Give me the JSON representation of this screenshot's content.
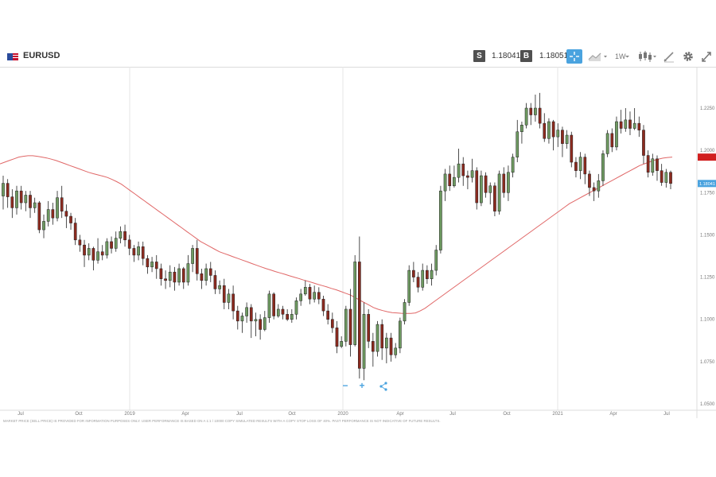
{
  "header": {
    "symbol": "EURUSD",
    "sell_label": "S",
    "sell_price": "1.18041",
    "buy_label": "B",
    "buy_price": "1.18051",
    "timeframe": "1W",
    "icons": [
      "us-eu-flag-icon",
      "crosshair-icon",
      "chart-type-icon",
      "candles-icon",
      "draw-icon",
      "gear-icon",
      "fullscreen-icon"
    ]
  },
  "colors": {
    "up": "#6e9a61",
    "down": "#8c2a1f",
    "ma": "#e06767",
    "crosshair_active": "#4aa3df",
    "price_tag": "#4aa3df",
    "ma_tag": "#d11f1f"
  },
  "chart_data": {
    "type": "candlestick",
    "x_ticks": [
      "Jul",
      "Oct",
      "2019",
      "Apr",
      "Jul",
      "Oct",
      "2020",
      "Apr",
      "Jul",
      "Oct",
      "2021",
      "Apr",
      "Jul"
    ],
    "y_ticks": [
      "1.2250",
      "1.2000",
      "1.1750",
      "1.1500",
      "1.1250",
      "1.1000",
      "1.0750",
      "1.0500"
    ],
    "ylim": [
      1.05,
      1.249
    ],
    "current_price": 1.1804,
    "current_price_label": "1.18041",
    "ma_current": 1.196,
    "grid": "vertical lines at year boundaries",
    "candles": [
      [
        1.173,
        1.1805,
        1.185,
        1.165
      ],
      [
        1.1805,
        1.1725,
        1.183,
        1.166
      ],
      [
        1.1725,
        1.166,
        1.177,
        1.16
      ],
      [
        1.166,
        1.176,
        1.179,
        1.162
      ],
      [
        1.176,
        1.169,
        1.179,
        1.165
      ],
      [
        1.169,
        1.1735,
        1.176,
        1.164
      ],
      [
        1.1735,
        1.166,
        1.176,
        1.16
      ],
      [
        1.166,
        1.169,
        1.172,
        1.163
      ],
      [
        1.169,
        1.153,
        1.17,
        1.151
      ],
      [
        1.153,
        1.158,
        1.162,
        1.148
      ],
      [
        1.158,
        1.165,
        1.17,
        1.155
      ],
      [
        1.165,
        1.16,
        1.169,
        1.156
      ],
      [
        1.16,
        1.172,
        1.176,
        1.158
      ],
      [
        1.172,
        1.164,
        1.179,
        1.16
      ],
      [
        1.164,
        1.161,
        1.168,
        1.154
      ],
      [
        1.161,
        1.157,
        1.163,
        1.153
      ],
      [
        1.157,
        1.147,
        1.16,
        1.144
      ],
      [
        1.147,
        1.144,
        1.15,
        1.14
      ],
      [
        1.144,
        1.138,
        1.147,
        1.131
      ],
      [
        1.138,
        1.142,
        1.145,
        1.135
      ],
      [
        1.142,
        1.135,
        1.143,
        1.129
      ],
      [
        1.135,
        1.14,
        1.148,
        1.133
      ],
      [
        1.14,
        1.138,
        1.144,
        1.135
      ],
      [
        1.138,
        1.146,
        1.148,
        1.136
      ],
      [
        1.146,
        1.142,
        1.149,
        1.139
      ],
      [
        1.142,
        1.148,
        1.152,
        1.14
      ],
      [
        1.148,
        1.152,
        1.155,
        1.145
      ],
      [
        1.152,
        1.147,
        1.156,
        1.143
      ],
      [
        1.147,
        1.142,
        1.15,
        1.138
      ],
      [
        1.142,
        1.138,
        1.144,
        1.134
      ],
      [
        1.138,
        1.143,
        1.146,
        1.135
      ],
      [
        1.143,
        1.136,
        1.146,
        1.132
      ],
      [
        1.136,
        1.131,
        1.138,
        1.127
      ],
      [
        1.131,
        1.134,
        1.137,
        1.128
      ],
      [
        1.134,
        1.13,
        1.138,
        1.124
      ],
      [
        1.13,
        1.124,
        1.133,
        1.12
      ],
      [
        1.124,
        1.123,
        1.129,
        1.118
      ],
      [
        1.123,
        1.128,
        1.132,
        1.119
      ],
      [
        1.128,
        1.122,
        1.131,
        1.117
      ],
      [
        1.122,
        1.13,
        1.133,
        1.12
      ],
      [
        1.13,
        1.122,
        1.131,
        1.118
      ],
      [
        1.122,
        1.133,
        1.138,
        1.12
      ],
      [
        1.133,
        1.142,
        1.144,
        1.128
      ],
      [
        1.142,
        1.127,
        1.147,
        1.123
      ],
      [
        1.127,
        1.123,
        1.13,
        1.118
      ],
      [
        1.123,
        1.13,
        1.133,
        1.12
      ],
      [
        1.13,
        1.126,
        1.134,
        1.122
      ],
      [
        1.126,
        1.118,
        1.129,
        1.115
      ],
      [
        1.118,
        1.12,
        1.123,
        1.115
      ],
      [
        1.12,
        1.11,
        1.124,
        1.106
      ],
      [
        1.11,
        1.115,
        1.118,
        1.106
      ],
      [
        1.115,
        1.105,
        1.12,
        1.1
      ],
      [
        1.105,
        1.099,
        1.108,
        1.094
      ],
      [
        1.099,
        1.102,
        1.104,
        1.092
      ],
      [
        1.102,
        1.107,
        1.11,
        1.098
      ],
      [
        1.107,
        1.099,
        1.109,
        1.089
      ],
      [
        1.099,
        1.1,
        1.104,
        1.09
      ],
      [
        1.1,
        1.094,
        1.103,
        1.088
      ],
      [
        1.094,
        1.101,
        1.105,
        1.093
      ],
      [
        1.101,
        1.115,
        1.117,
        1.098
      ],
      [
        1.115,
        1.102,
        1.116,
        1.1
      ],
      [
        1.102,
        1.106,
        1.109,
        1.101
      ],
      [
        1.106,
        1.103,
        1.108,
        1.1
      ],
      [
        1.103,
        1.1,
        1.106,
        1.099
      ],
      [
        1.1,
        1.103,
        1.106,
        1.098
      ],
      [
        1.103,
        1.111,
        1.113,
        1.1
      ],
      [
        1.111,
        1.115,
        1.118,
        1.108
      ],
      [
        1.115,
        1.119,
        1.123,
        1.114
      ],
      [
        1.119,
        1.112,
        1.121,
        1.109
      ],
      [
        1.112,
        1.116,
        1.12,
        1.11
      ],
      [
        1.116,
        1.112,
        1.119,
        1.109
      ],
      [
        1.112,
        1.105,
        1.114,
        1.102
      ],
      [
        1.105,
        1.1,
        1.109,
        1.097
      ],
      [
        1.1,
        1.095,
        1.104,
        1.092
      ],
      [
        1.095,
        1.084,
        1.099,
        1.08
      ],
      [
        1.084,
        1.087,
        1.09,
        1.083
      ],
      [
        1.087,
        1.106,
        1.108,
        1.084
      ],
      [
        1.106,
        1.085,
        1.118,
        1.078
      ],
      [
        1.085,
        1.134,
        1.138,
        1.084
      ],
      [
        1.134,
        1.071,
        1.149,
        1.065
      ],
      [
        1.071,
        1.103,
        1.11,
        1.064
      ],
      [
        1.103,
        1.087,
        1.106,
        1.083
      ],
      [
        1.087,
        1.081,
        1.092,
        1.072
      ],
      [
        1.081,
        1.097,
        1.099,
        1.078
      ],
      [
        1.097,
        1.083,
        1.1,
        1.076
      ],
      [
        1.083,
        1.089,
        1.092,
        1.074
      ],
      [
        1.089,
        1.079,
        1.092,
        1.075
      ],
      [
        1.079,
        1.083,
        1.086,
        1.077
      ],
      [
        1.083,
        1.099,
        1.101,
        1.08
      ],
      [
        1.099,
        1.11,
        1.112,
        1.097
      ],
      [
        1.11,
        1.129,
        1.132,
        1.108
      ],
      [
        1.129,
        1.125,
        1.134,
        1.122
      ],
      [
        1.125,
        1.119,
        1.128,
        1.116
      ],
      [
        1.119,
        1.129,
        1.133,
        1.117
      ],
      [
        1.129,
        1.124,
        1.132,
        1.121
      ],
      [
        1.124,
        1.129,
        1.133,
        1.12
      ],
      [
        1.129,
        1.141,
        1.144,
        1.126
      ],
      [
        1.141,
        1.176,
        1.179,
        1.139
      ],
      [
        1.176,
        1.186,
        1.189,
        1.17
      ],
      [
        1.186,
        1.179,
        1.191,
        1.176
      ],
      [
        1.179,
        1.184,
        1.191,
        1.178
      ],
      [
        1.184,
        1.192,
        1.201,
        1.181
      ],
      [
        1.192,
        1.185,
        1.196,
        1.179
      ],
      [
        1.185,
        1.184,
        1.188,
        1.177
      ],
      [
        1.184,
        1.188,
        1.195,
        1.181
      ],
      [
        1.188,
        1.169,
        1.19,
        1.165
      ],
      [
        1.169,
        1.185,
        1.188,
        1.167
      ],
      [
        1.185,
        1.175,
        1.187,
        1.172
      ],
      [
        1.175,
        1.179,
        1.181,
        1.168
      ],
      [
        1.179,
        1.164,
        1.181,
        1.161
      ],
      [
        1.164,
        1.186,
        1.188,
        1.162
      ],
      [
        1.186,
        1.175,
        1.19,
        1.172
      ],
      [
        1.175,
        1.187,
        1.191,
        1.17
      ],
      [
        1.187,
        1.196,
        1.198,
        1.184
      ],
      [
        1.196,
        1.211,
        1.218,
        1.193
      ],
      [
        1.211,
        1.215,
        1.217,
        1.204
      ],
      [
        1.215,
        1.225,
        1.228,
        1.213
      ],
      [
        1.225,
        1.221,
        1.228,
        1.215
      ],
      [
        1.221,
        1.225,
        1.233,
        1.217
      ],
      [
        1.225,
        1.216,
        1.234,
        1.213
      ],
      [
        1.216,
        1.207,
        1.222,
        1.205
      ],
      [
        1.207,
        1.217,
        1.219,
        1.204
      ],
      [
        1.217,
        1.208,
        1.218,
        1.2
      ],
      [
        1.208,
        1.212,
        1.216,
        1.202
      ],
      [
        1.212,
        1.204,
        1.214,
        1.196
      ],
      [
        1.204,
        1.209,
        1.212,
        1.201
      ],
      [
        1.209,
        1.193,
        1.211,
        1.19
      ],
      [
        1.193,
        1.188,
        1.196,
        1.184
      ],
      [
        1.188,
        1.196,
        1.199,
        1.183
      ],
      [
        1.196,
        1.186,
        1.198,
        1.18
      ],
      [
        1.186,
        1.178,
        1.188,
        1.173
      ],
      [
        1.178,
        1.176,
        1.181,
        1.17
      ],
      [
        1.176,
        1.182,
        1.186,
        1.172
      ],
      [
        1.182,
        1.198,
        1.2,
        1.179
      ],
      [
        1.198,
        1.21,
        1.212,
        1.196
      ],
      [
        1.21,
        1.202,
        1.213,
        1.199
      ],
      [
        1.202,
        1.217,
        1.22,
        1.2
      ],
      [
        1.217,
        1.213,
        1.224,
        1.21
      ],
      [
        1.213,
        1.218,
        1.225,
        1.211
      ],
      [
        1.218,
        1.213,
        1.223,
        1.209
      ],
      [
        1.213,
        1.216,
        1.225,
        1.212
      ],
      [
        1.216,
        1.212,
        1.22,
        1.208
      ],
      [
        1.212,
        1.197,
        1.215,
        1.192
      ],
      [
        1.197,
        1.187,
        1.2,
        1.184
      ],
      [
        1.187,
        1.195,
        1.198,
        1.185
      ],
      [
        1.195,
        1.188,
        1.197,
        1.182
      ],
      [
        1.188,
        1.181,
        1.192,
        1.179
      ],
      [
        1.181,
        1.187,
        1.189,
        1.178
      ],
      [
        1.187,
        1.1804,
        1.188,
        1.177
      ]
    ],
    "moving_average": [
      1.192,
      1.193,
      1.194,
      1.195,
      1.196,
      1.1965,
      1.1968,
      1.1968,
      1.1965,
      1.196,
      1.1955,
      1.1948,
      1.194,
      1.193,
      1.192,
      1.191,
      1.19,
      1.189,
      1.188,
      1.187,
      1.1862,
      1.1855,
      1.1848,
      1.184,
      1.1828,
      1.1815,
      1.18,
      1.178,
      1.176,
      1.174,
      1.172,
      1.17,
      1.168,
      1.166,
      1.164,
      1.162,
      1.16,
      1.158,
      1.156,
      1.154,
      1.152,
      1.15,
      1.148,
      1.146,
      1.1445,
      1.143,
      1.1415,
      1.14,
      1.139,
      1.138,
      1.137,
      1.136,
      1.135,
      1.134,
      1.133,
      1.132,
      1.131,
      1.13,
      1.1292,
      1.1283,
      1.1275,
      1.1267,
      1.1258,
      1.125,
      1.1242,
      1.1233,
      1.1225,
      1.1217,
      1.1208,
      1.12,
      1.1192,
      1.1183,
      1.1175,
      1.1165,
      1.1155,
      1.1145,
      1.113,
      1.1115,
      1.11,
      1.1085,
      1.107,
      1.106,
      1.1052,
      1.1045,
      1.104,
      1.1038,
      1.1036,
      1.1035,
      1.1035,
      1.1038,
      1.105,
      1.1065,
      1.1085,
      1.1105,
      1.1125,
      1.1145,
      1.1165,
      1.1185,
      1.1205,
      1.1225,
      1.1245,
      1.1265,
      1.1285,
      1.1305,
      1.1325,
      1.1345,
      1.1365,
      1.1385,
      1.1405,
      1.1425,
      1.1445,
      1.1465,
      1.1485,
      1.1505,
      1.1525,
      1.1545,
      1.1565,
      1.1585,
      1.1605,
      1.1625,
      1.1645,
      1.1665,
      1.1685,
      1.17,
      1.1715,
      1.173,
      1.1745,
      1.176,
      1.1775,
      1.179,
      1.1805,
      1.182,
      1.1835,
      1.185,
      1.1865,
      1.188,
      1.1895,
      1.191,
      1.192,
      1.193,
      1.194,
      1.1948,
      1.1954,
      1.1958,
      1.196
    ],
    "disclaimer": "MARKET PRICE (SELL PRICE) IS PROVIDED FOR INFORMATION PURPOSES ONLY. USER PERFORMANCE IS BASED ON A 1:1 / 10000 COPY SIMULATED RESULTS WITH A COPY STOP LOSS OF 40%. PAST PERFORMANCE IS NOT INDICATIVE OF FUTURE RESULTS."
  },
  "zoom_controls": {
    "minus": "−",
    "plus": "+"
  }
}
